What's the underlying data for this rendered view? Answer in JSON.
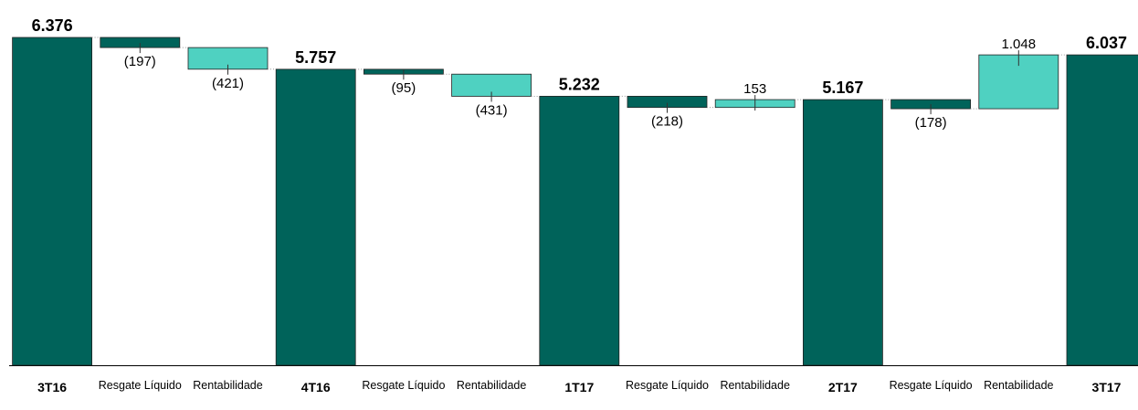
{
  "chart_data": {
    "type": "waterfall",
    "categories": [
      "3T16",
      "Resgate Líquido",
      "Rentabilidade",
      "4T16",
      "Resgate Líquido",
      "Rentabilidade",
      "1T17",
      "Resgate Líquido",
      "Rentabilidade",
      "2T17",
      "Resgate Líquido",
      "Rentabilidade",
      "3T17"
    ],
    "measure": [
      "total",
      "relative",
      "relative",
      "total",
      "relative",
      "relative",
      "total",
      "relative",
      "relative",
      "total",
      "relative",
      "relative",
      "total"
    ],
    "values": [
      6376,
      -197,
      -421,
      5757,
      -95,
      -431,
      5232,
      -218,
      153,
      5167,
      -178,
      1048,
      6037
    ],
    "value_labels": [
      "6.376",
      "(197)",
      "(421)",
      "5.757",
      "(95)",
      "(431)",
      "5.232",
      "(218)",
      "153",
      "5.167",
      "(178)",
      "1.048",
      "6.037"
    ],
    "colors": [
      "#00635a",
      "#00635a",
      "#4fd1c1",
      "#00635a",
      "#00635a",
      "#4fd1c1",
      "#00635a",
      "#00635a",
      "#4fd1c1",
      "#00635a",
      "#00635a",
      "#4fd1c1",
      "#00635a"
    ]
  }
}
